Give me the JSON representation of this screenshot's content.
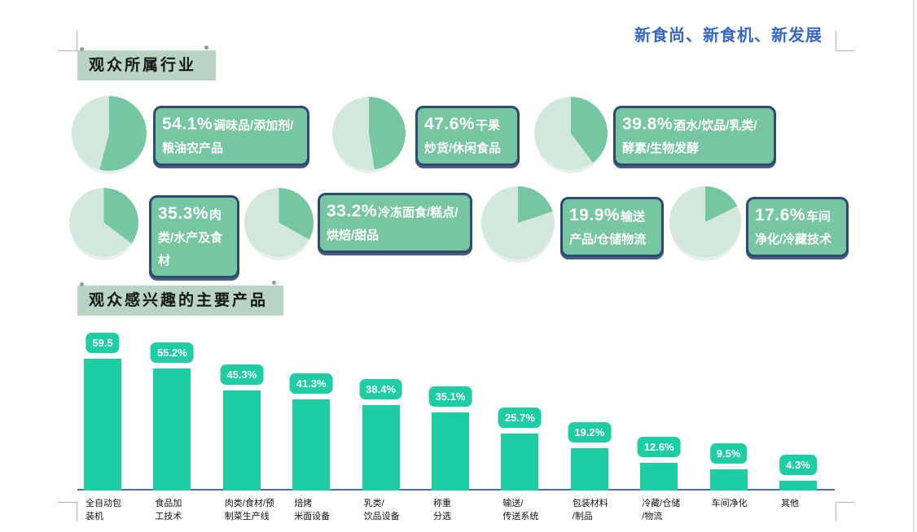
{
  "page": {
    "slogan": "新食尚、新食机、新发展",
    "section1_title": "观众所属行业",
    "section2_title": "观众感兴趣的主要产品"
  },
  "colors": {
    "slogan_blue": "#3766cb",
    "banner_bg": "#b7d4c5",
    "pie_slice_dark": "#76c6a1",
    "pie_slice_light": "#d3e8dc",
    "callout_bg": "#76c6a1",
    "callout_border": "#2e4a74",
    "bar_teal": "#1ecda3",
    "axis_blue": "#506fa8"
  },
  "chart_data": [
    {
      "type": "pie",
      "title": "观众所属行业",
      "legend_position": "callout right of each pie",
      "grid": false,
      "slice_color": "#76c6a1",
      "remainder_color": "#d3e8dc",
      "items": [
        {
          "pct_label": "54.1%",
          "value": 54.1,
          "label": "调味品/添加剂/粮油农产品"
        },
        {
          "pct_label": "47.6%",
          "value": 47.6,
          "label": "干果炒货/休闲食品"
        },
        {
          "pct_label": "39.8%",
          "value": 39.8,
          "label": "酒水/饮品/乳类/酵素/生物发酵"
        },
        {
          "pct_label": "35.3%",
          "value": 35.3,
          "label": "肉类/水产及食材"
        },
        {
          "pct_label": "33.2%",
          "value": 33.2,
          "label": "冷冻面食/糕点/烘焙/甜品"
        },
        {
          "pct_label": "19.9%",
          "value": 19.9,
          "label": "输送产品/仓储物流"
        },
        {
          "pct_label": "17.6%",
          "value": 17.6,
          "label": "车间净化/冷藏技术"
        }
      ]
    },
    {
      "type": "bar",
      "title": "观众感兴趣的主要产品",
      "xlabel": "",
      "ylabel": "",
      "ylim": [
        0,
        65
      ],
      "grid": false,
      "bar_color": "#1ecda3",
      "categories": [
        "全自动包装机",
        "食品加工技术",
        "肉类/食材/预制菜生产线",
        "焙烤米面设备",
        "乳类/饮品设备",
        "称重分选",
        "输送/传送系统",
        "包装材料/制品",
        "冷藏/仓储/物流",
        "车间净化",
        "其他"
      ],
      "category_lines": [
        [
          "全自动包",
          "装机"
        ],
        [
          "食品加",
          "工技术"
        ],
        [
          "肉类/食材/预",
          "制菜生产线"
        ],
        [
          "焙烤",
          "米面设备"
        ],
        [
          "乳类/",
          "饮品设备"
        ],
        [
          "称重",
          "分选"
        ],
        [
          "输送/",
          "传送系统"
        ],
        [
          "包装材料",
          "/制品"
        ],
        [
          "冷藏/仓储",
          "/物流"
        ],
        [
          "车间净化"
        ],
        [
          "其他"
        ]
      ],
      "values": [
        59.5,
        55.2,
        45.3,
        41.3,
        38.4,
        35.1,
        25.7,
        19.2,
        12.6,
        9.5,
        4.3
      ],
      "value_labels": [
        "59.5",
        "55.2%",
        "45.3%",
        "41.3%",
        "38.4%",
        "35.1%",
        "25.7%",
        "19.2%",
        "12.6%",
        "9.5%",
        "4.3%"
      ]
    }
  ]
}
